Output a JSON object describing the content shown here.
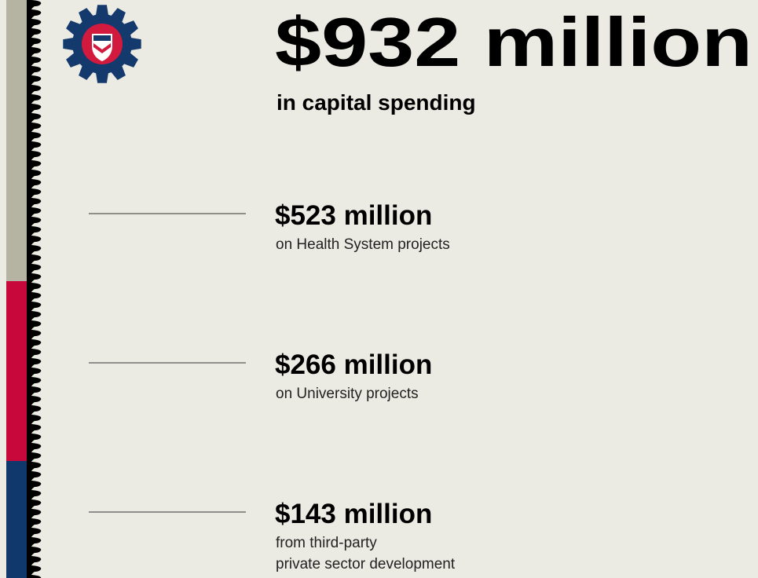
{
  "headline": {
    "amount": "$932 million",
    "caption": "in capital spending"
  },
  "items": [
    {
      "amount": "$523 million",
      "lines": [
        "on Health System projects"
      ]
    },
    {
      "amount": "$266 million",
      "lines": [
        "on University projects"
      ]
    },
    {
      "amount": "$143 million",
      "lines": [
        "from third-party",
        "private sector development"
      ]
    }
  ]
}
